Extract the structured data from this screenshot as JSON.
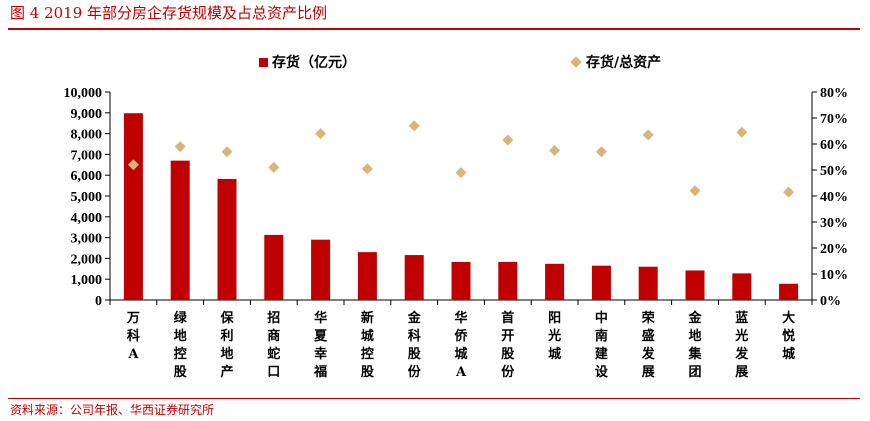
{
  "page": {
    "title": "图 4  2019 年部分房企存货规模及占总资产比例",
    "source": "资料来源：公司年报、华西证券研究所"
  },
  "colors": {
    "accent": "#c00000",
    "bar": "#c00000",
    "marker": "#d9b47a"
  },
  "chart_data": {
    "type": "bar",
    "title": "",
    "categories": [
      "万科A",
      "绿地控股",
      "保利地产",
      "招商蛇口",
      "华夏幸福",
      "新城控股",
      "金科股份",
      "华侨城A",
      "首开股份",
      "阳光城",
      "中南建设",
      "荣盛发展",
      "金地集团",
      "蓝光发展",
      "大悦城"
    ],
    "series": [
      {
        "name": "存货（亿元）",
        "type": "bar",
        "axis": "left",
        "values": [
          8980,
          6700,
          5820,
          3130,
          2900,
          2300,
          2160,
          1830,
          1830,
          1740,
          1650,
          1600,
          1420,
          1280,
          780
        ]
      },
      {
        "name": "存货/总资产",
        "type": "scatter",
        "axis": "right",
        "values": [
          52,
          59,
          57,
          51,
          64,
          50.5,
          67,
          49,
          61.5,
          57.5,
          57,
          63.5,
          42,
          64.5,
          41.5
        ]
      }
    ],
    "ylim_left": [
      0,
      10000
    ],
    "ylim_right": [
      0,
      80
    ],
    "yticks_left": [
      "0",
      "1,000",
      "2,000",
      "3,000",
      "4,000",
      "5,000",
      "6,000",
      "7,000",
      "8,000",
      "9,000",
      "10,000"
    ],
    "yticks_right": [
      "0%",
      "10%",
      "20%",
      "30%",
      "40%",
      "50%",
      "60%",
      "70%",
      "80%"
    ],
    "legend_position": "top",
    "grid": false
  }
}
